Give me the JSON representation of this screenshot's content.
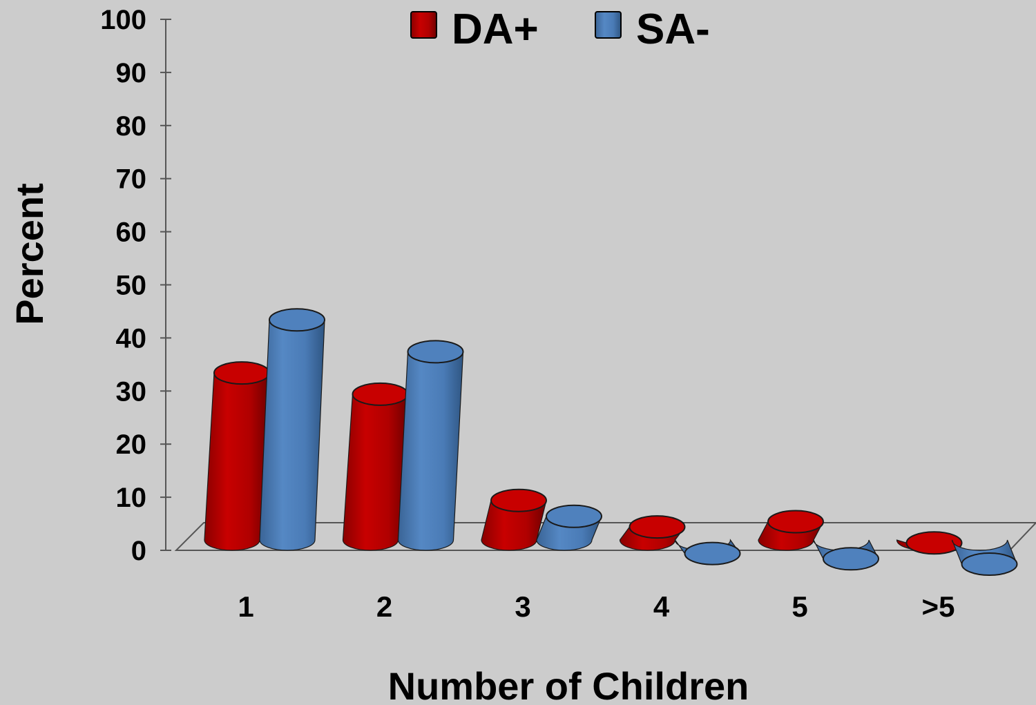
{
  "chart_data": {
    "type": "bar",
    "style": "3d-cylinder",
    "categories": [
      "1",
      "2",
      "3",
      "4",
      "5",
      ">5"
    ],
    "series": [
      {
        "name": "DA+",
        "color": "#c00000",
        "values": [
          36,
          32,
          12,
          7,
          8,
          4
        ]
      },
      {
        "name": "SA-",
        "color": "#4f81bd",
        "values": [
          46,
          40,
          9,
          2,
          1,
          0
        ]
      }
    ],
    "xlabel": "Number of Children",
    "ylabel": "Percent",
    "ylim": [
      0,
      100
    ],
    "yticks": [
      "0",
      "10",
      "20",
      "30",
      "40",
      "50",
      "60",
      "70",
      "80",
      "90",
      "100"
    ],
    "legend_position": "top-center",
    "grid": false
  }
}
